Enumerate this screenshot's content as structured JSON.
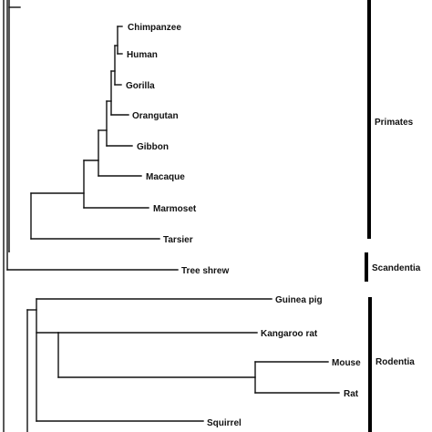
{
  "taxa": {
    "chimpanzee": "Chimpanzee",
    "human": "Human",
    "gorilla": "Gorilla",
    "orangutan": "Orangutan",
    "gibbon": "Gibbon",
    "macaque": "Macaque",
    "marmoset": "Marmoset",
    "tarsier": "Tarsier",
    "tree_shrew": "Tree shrew",
    "guinea_pig": "Guinea pig",
    "kangaroo_rat": "Kangaroo rat",
    "mouse": "Mouse",
    "rat": "Rat",
    "squirrel": "Squirrel"
  },
  "clades": {
    "primates": "Primates",
    "scandentia": "Scandentia",
    "rodentia": "Rodentia"
  }
}
